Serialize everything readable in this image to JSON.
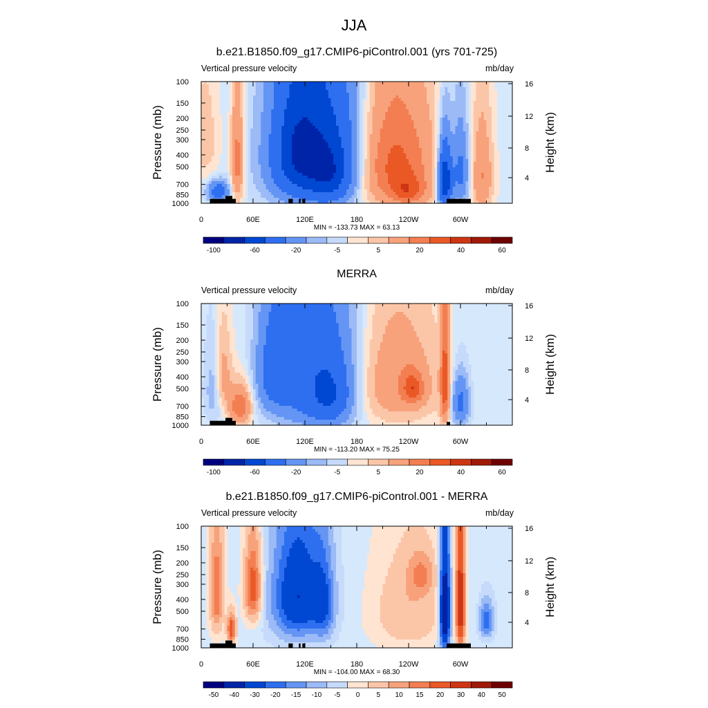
{
  "figure": {
    "title": "JJA"
  },
  "colors": {
    "panel_background": "#d6e8fb",
    "land_mask": "#000000"
  },
  "palette_main": [
    "#00007f",
    "#0024a8",
    "#0047d1",
    "#2e6ff0",
    "#6495f4",
    "#9bbaf6",
    "#c6dbfb",
    "#ffe4d2",
    "#fbc6a8",
    "#f7a27b",
    "#f37e52",
    "#ea5826",
    "#ce3512",
    "#a01a08",
    "#6e0000"
  ],
  "palette_diff": [
    "#00007f",
    "#0024a8",
    "#0047d1",
    "#2e6ff0",
    "#6495f4",
    "#9bbaf6",
    "#c6dbfb",
    "#ffe4d2",
    "#fbc6a8",
    "#f7a27b",
    "#f37e52",
    "#ea5826",
    "#ce3512",
    "#a01a08",
    "#6e0000"
  ],
  "chart_data": [
    {
      "type": "heatmap",
      "title": "b.e21.B1850.f09_g17.CMIP6-piControl.001 (yrs 701-725)",
      "left_label": "Vertical pressure velocity",
      "right_label": "mb/day",
      "ylabel": "Pressure (mb)",
      "y2label": "Height (km)",
      "xticks": [
        "0",
        "60E",
        "120E",
        "180",
        "120W",
        "60W"
      ],
      "yticks": [
        "100",
        "150",
        "200",
        "250",
        "300",
        "400",
        "500",
        "700",
        "850",
        "1000"
      ],
      "y2ticks": [
        "16",
        "12",
        "8",
        "4"
      ],
      "stats": "MIN = -133.73  MAX =  63.13",
      "colorbar_labels": [
        "-100",
        "-60",
        "-20",
        "-5",
        "5",
        "20",
        "40",
        "60"
      ],
      "palette": "main",
      "features": [
        {
          "lon": 135,
          "p": 420,
          "dlon": 50,
          "dp": 520,
          "v": -55
        },
        {
          "lon": 110,
          "p": 350,
          "dlon": 25,
          "dp": 350,
          "v": -25
        },
        {
          "lon": 150,
          "p": 600,
          "dlon": 20,
          "dp": 300,
          "v": -20
        },
        {
          "lon": 222,
          "p": 480,
          "dlon": 45,
          "dp": 500,
          "v": 35
        },
        {
          "lon": 240,
          "p": 800,
          "dlon": 20,
          "dp": 200,
          "v": 20
        },
        {
          "lon": 282,
          "p": 650,
          "dlon": 8,
          "dp": 380,
          "v": -60
        },
        {
          "lon": 300,
          "p": 550,
          "dlon": 10,
          "dp": 400,
          "v": -25
        },
        {
          "lon": 325,
          "p": 600,
          "dlon": 12,
          "dp": 500,
          "v": 20
        },
        {
          "lon": 42,
          "p": 450,
          "dlon": 7,
          "dp": 450,
          "v": 25
        },
        {
          "lon": 20,
          "p": 800,
          "dlon": 12,
          "dp": 150,
          "v": -30
        },
        {
          "lon": 5,
          "p": 300,
          "dlon": 15,
          "dp": 300,
          "v": 8
        }
      ],
      "land": [
        [
          10,
          40,
          920
        ],
        [
          28,
          36,
          870
        ],
        [
          101,
          106,
          920
        ],
        [
          113,
          115,
          920
        ],
        [
          117,
          120,
          920
        ],
        [
          284,
          312,
          920
        ]
      ]
    },
    {
      "type": "heatmap",
      "title": "MERRA",
      "left_label": "Vertical pressure velocity",
      "right_label": "mb/day",
      "ylabel": "Pressure (mb)",
      "y2label": "Height (km)",
      "xticks": [
        "0",
        "60E",
        "120E",
        "180",
        "120W",
        "60W"
      ],
      "yticks": [
        "100",
        "150",
        "200",
        "250",
        "300",
        "400",
        "500",
        "700",
        "850",
        "1000"
      ],
      "y2ticks": [
        "16",
        "12",
        "8",
        "4"
      ],
      "stats": "MIN = -113.20  MAX =  75.25",
      "colorbar_labels": [
        "-100",
        "-60",
        "-20",
        "-5",
        "5",
        "20",
        "40",
        "60"
      ],
      "palette": "main",
      "features": [
        {
          "lon": 135,
          "p": 430,
          "dlon": 45,
          "dp": 520,
          "v": -35
        },
        {
          "lon": 85,
          "p": 350,
          "dlon": 20,
          "dp": 350,
          "v": -25
        },
        {
          "lon": 150,
          "p": 600,
          "dlon": 20,
          "dp": 300,
          "v": -18
        },
        {
          "lon": 225,
          "p": 450,
          "dlon": 50,
          "dp": 450,
          "v": 18
        },
        {
          "lon": 245,
          "p": 500,
          "dlon": 12,
          "dp": 150,
          "v": 25
        },
        {
          "lon": 282,
          "p": 450,
          "dlon": 5,
          "dp": 450,
          "v": 35
        },
        {
          "lon": 300,
          "p": 650,
          "dlon": 10,
          "dp": 300,
          "v": -25
        },
        {
          "lon": 45,
          "p": 700,
          "dlon": 12,
          "dp": 250,
          "v": 30
        },
        {
          "lon": 25,
          "p": 400,
          "dlon": 10,
          "dp": 300,
          "v": 15
        },
        {
          "lon": 15,
          "p": 500,
          "dlon": 10,
          "dp": 350,
          "v": -10
        }
      ],
      "land": [
        [
          10,
          40,
          920
        ],
        [
          28,
          36,
          870
        ],
        [
          284,
          288,
          940
        ]
      ]
    },
    {
      "type": "heatmap",
      "title": "b.e21.B1850.f09_g17.CMIP6-piControl.001 - MERRA",
      "left_label": "Vertical pressure velocity",
      "right_label": "mb/day",
      "ylabel": "Pressure (mb)",
      "y2label": "Height (km)",
      "xticks": [
        "0",
        "60E",
        "120E",
        "180",
        "120W",
        "60W"
      ],
      "yticks": [
        "100",
        "150",
        "200",
        "250",
        "300",
        "400",
        "500",
        "700",
        "850",
        "1000"
      ],
      "y2ticks": [
        "16",
        "12",
        "8",
        "4"
      ],
      "stats": "MIN = -104.00  MAX =  68.30",
      "colorbar_labels": [
        "-50",
        "-40",
        "-30",
        "-20",
        "-15",
        "-10",
        "-5",
        "0",
        "5",
        "10",
        "15",
        "20",
        "30",
        "40",
        "50"
      ],
      "palette": "diff",
      "features": [
        {
          "lon": 60,
          "p": 320,
          "dlon": 10,
          "dp": 250,
          "v": 25
        },
        {
          "lon": 18,
          "p": 350,
          "dlon": 8,
          "dp": 350,
          "v": 20
        },
        {
          "lon": 112,
          "p": 380,
          "dlon": 30,
          "dp": 400,
          "v": -30
        },
        {
          "lon": 142,
          "p": 450,
          "dlon": 12,
          "dp": 350,
          "v": -15
        },
        {
          "lon": 240,
          "p": 500,
          "dlon": 40,
          "dp": 450,
          "v": 10
        },
        {
          "lon": 255,
          "p": 250,
          "dlon": 15,
          "dp": 100,
          "v": 12
        },
        {
          "lon": 282,
          "p": 500,
          "dlon": 6,
          "dp": 500,
          "v": -45
        },
        {
          "lon": 300,
          "p": 450,
          "dlon": 5,
          "dp": 450,
          "v": 40
        },
        {
          "lon": 330,
          "p": 600,
          "dlon": 8,
          "dp": 200,
          "v": -20
        },
        {
          "lon": 35,
          "p": 700,
          "dlon": 5,
          "dp": 200,
          "v": 25
        }
      ],
      "land": [
        [
          10,
          40,
          920
        ],
        [
          28,
          36,
          870
        ],
        [
          101,
          106,
          920
        ],
        [
          113,
          115,
          920
        ],
        [
          117,
          120,
          920
        ],
        [
          284,
          312,
          920
        ]
      ]
    }
  ]
}
